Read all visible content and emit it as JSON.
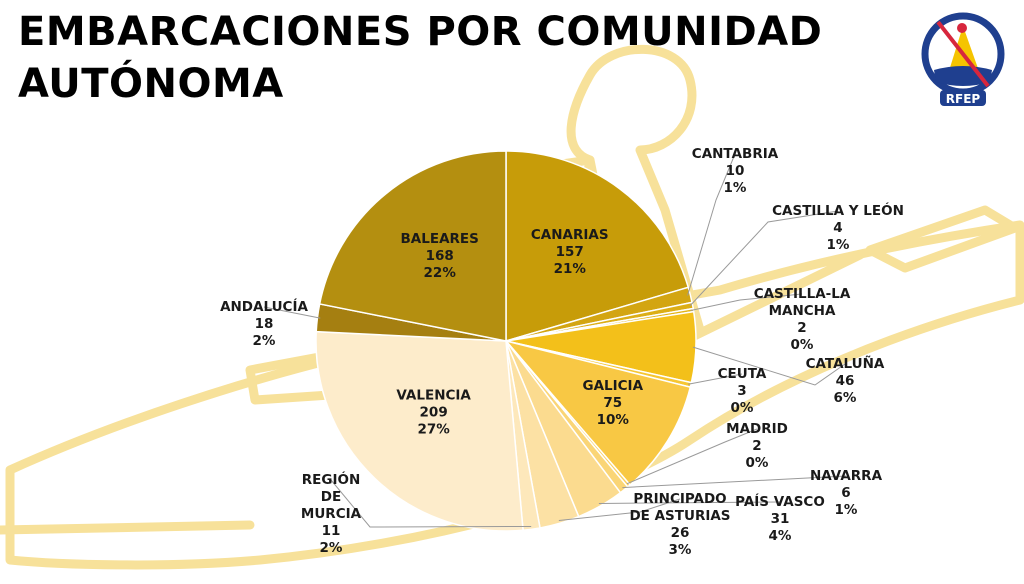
{
  "slide": {
    "title_line1": "EMBARCACIONES POR COMUNIDAD",
    "title_line2": "AUTÓNOMA",
    "logo_text": "RFEP"
  },
  "colors": {
    "line_art": "#f7e19a",
    "logo_blue": "#1f3f8f",
    "logo_red": "#d7263d",
    "logo_yellow": "#f5c400"
  },
  "chart_data": {
    "type": "pie",
    "title": "EMBARCACIONES POR COMUNIDAD AUTÓNOMA",
    "slices": [
      {
        "label": "CANARIAS",
        "value": 157,
        "percent": "21%",
        "color": "#c79c09",
        "label_lines": [
          "CANARIAS"
        ]
      },
      {
        "label": "CANTABRIA",
        "value": 10,
        "percent": "1%",
        "color": "#d3a512",
        "label_lines": [
          "CANTABRIA"
        ]
      },
      {
        "label": "CASTILLA Y LEÓN",
        "value": 4,
        "percent": "1%",
        "color": "#dcae16",
        "label_lines": [
          "CASTILLA Y LEÓN"
        ]
      },
      {
        "label": "CASTILLA-LA MANCHA",
        "value": 2,
        "percent": "0%",
        "color": "#e4b517",
        "label_lines": [
          "CASTILLA-LA",
          "MANCHA"
        ]
      },
      {
        "label": "CATALUÑA",
        "value": 46,
        "percent": "6%",
        "color": "#f3c01a",
        "label_lines": [
          "CATALUÑA"
        ]
      },
      {
        "label": "CEUTA",
        "value": 3,
        "percent": "0%",
        "color": "#f6c631",
        "label_lines": [
          "CEUTA"
        ]
      },
      {
        "label": "GALICIA",
        "value": 75,
        "percent": "10%",
        "color": "#f8c844",
        "label_lines": [
          "GALICIA"
        ]
      },
      {
        "label": "MADRID",
        "value": 2,
        "percent": "0%",
        "color": "#f9cf60",
        "label_lines": [
          "MADRID"
        ]
      },
      {
        "label": "NAVARRA",
        "value": 6,
        "percent": "1%",
        "color": "#fad576",
        "label_lines": [
          "NAVARRA"
        ]
      },
      {
        "label": "PAÍS VASCO",
        "value": 31,
        "percent": "4%",
        "color": "#fbdb8f",
        "label_lines": [
          "PAÍS VASCO"
        ]
      },
      {
        "label": "PRINCIPADO DE ASTURIAS",
        "value": 26,
        "percent": "3%",
        "color": "#fce1a4",
        "label_lines": [
          "PRINCIPADO",
          "DE ASTURIAS"
        ]
      },
      {
        "label": "REGIÓN DE MURCIA",
        "value": 11,
        "percent": "2%",
        "color": "#fde8bb",
        "label_lines": [
          "REGIÓN",
          "DE",
          "MURCIA"
        ]
      },
      {
        "label": "VALENCIA",
        "value": 209,
        "percent": "27%",
        "color": "#fdeccb",
        "label_lines": [
          "VALENCIA"
        ]
      },
      {
        "label": "ANDALUCÍA",
        "value": 18,
        "percent": "2%",
        "color": "#a57f11",
        "label_lines": [
          "ANDALUCÍA"
        ]
      },
      {
        "label": "BALEARES",
        "value": 168,
        "percent": "22%",
        "color": "#b48f10",
        "label_lines": [
          "BALEARES"
        ]
      }
    ],
    "legend": "none"
  }
}
